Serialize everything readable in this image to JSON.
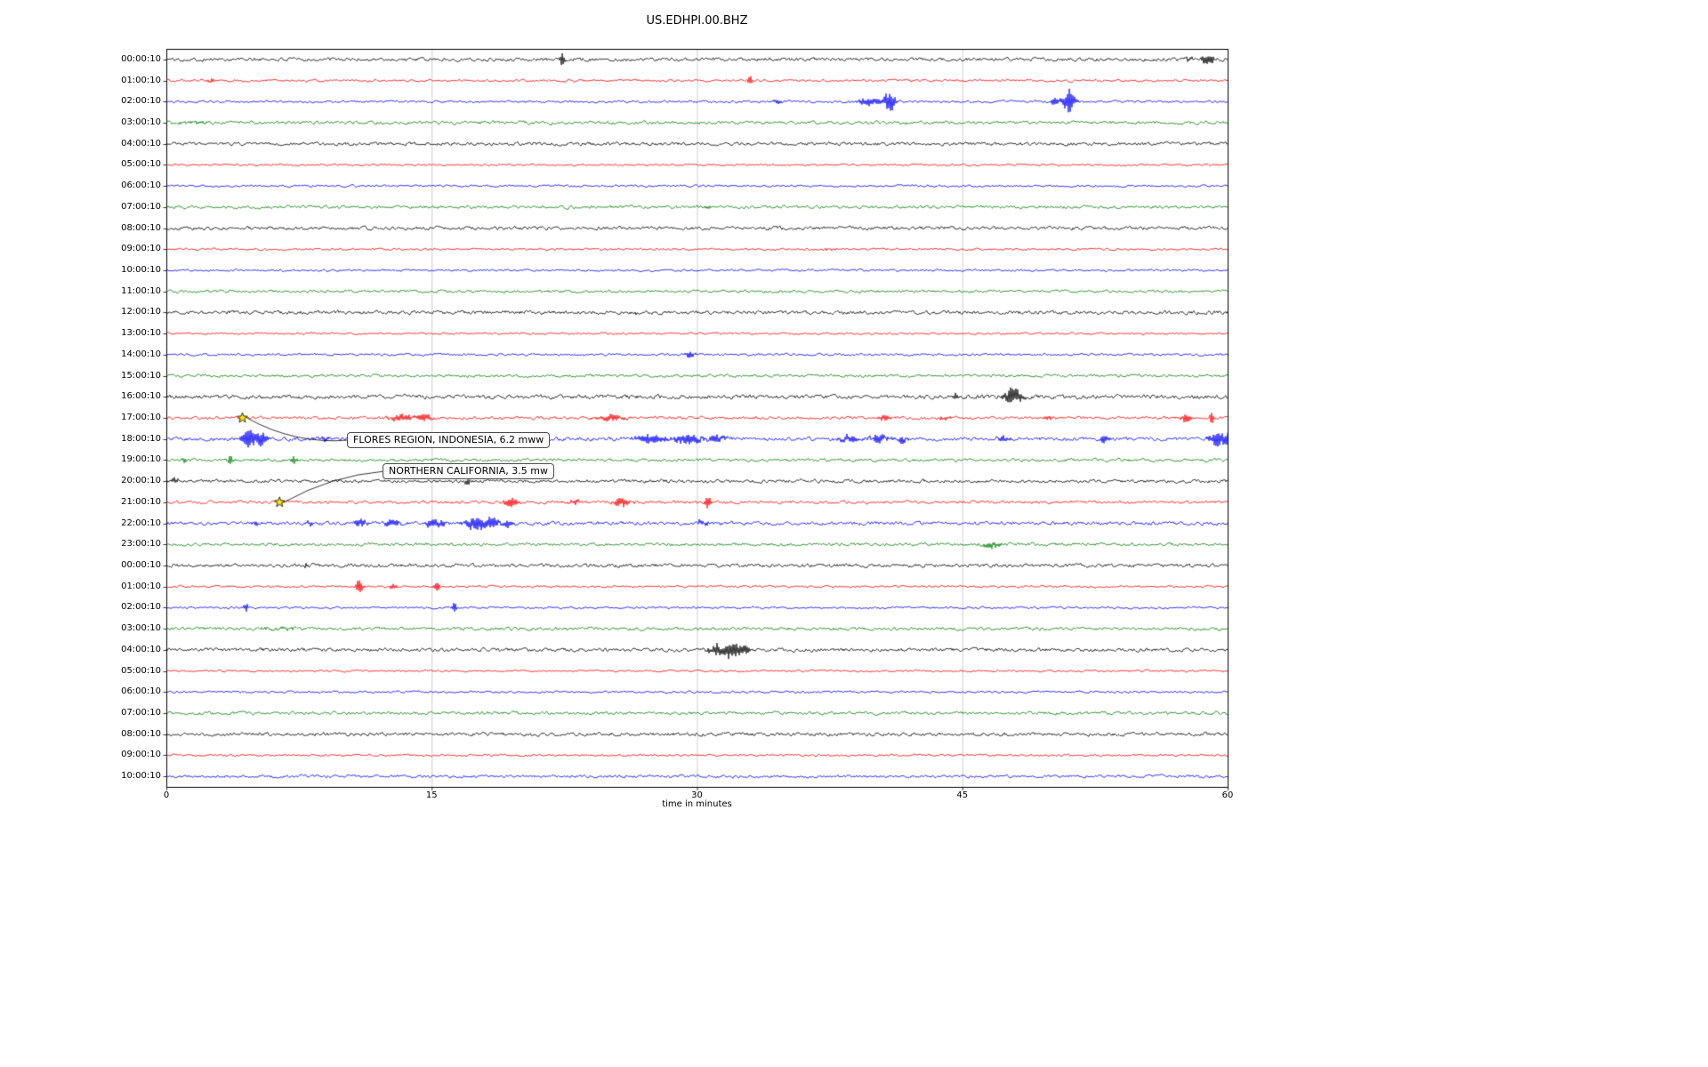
{
  "title": "US.EDHPI.00.BHZ",
  "xlabel": "time in minutes",
  "chart_data": {
    "type": "line",
    "subtype": "seismogram-dayplot",
    "title": "US.EDHPI.00.BHZ",
    "xlabel": "time in minutes",
    "xlim": [
      0,
      60
    ],
    "x_ticks": [
      0,
      15,
      30,
      45,
      60
    ],
    "x_gridlines": [
      15,
      30,
      45
    ],
    "grid_color": "#c8c8c8",
    "trace_color_cycle": [
      "#000000",
      "#ff0000",
      "#0000ff",
      "#008000"
    ],
    "event_marker_color": "#ffea00",
    "rows": [
      {
        "label": "00:00:10",
        "color": "#000000",
        "amp": 1.8,
        "bursts": [
          [
            22.4,
            0.12,
            9
          ],
          [
            57.8,
            0.2,
            3
          ],
          [
            58.9,
            0.35,
            6
          ]
        ]
      },
      {
        "label": "01:00:10",
        "color": "#ff0000",
        "amp": 1.2,
        "bursts": [
          [
            2.5,
            0.3,
            2
          ],
          [
            33.0,
            0.12,
            8
          ]
        ]
      },
      {
        "label": "02:00:10",
        "color": "#0000ff",
        "amp": 1.2,
        "bursts": [
          [
            34.6,
            0.25,
            3
          ],
          [
            39.7,
            0.7,
            5
          ],
          [
            40.9,
            0.3,
            13
          ],
          [
            50.2,
            0.2,
            5
          ],
          [
            51.0,
            0.35,
            15
          ]
        ]
      },
      {
        "label": "03:00:10",
        "color": "#008000",
        "amp": 1.6,
        "bursts": [
          [
            1.5,
            1.2,
            1.2
          ]
        ]
      },
      {
        "label": "04:00:10",
        "color": "#000000",
        "amp": 1.7,
        "bursts": []
      },
      {
        "label": "05:00:10",
        "color": "#ff0000",
        "amp": 1.0,
        "bursts": []
      },
      {
        "label": "06:00:10",
        "color": "#0000ff",
        "amp": 1.1,
        "bursts": []
      },
      {
        "label": "07:00:10",
        "color": "#008000",
        "amp": 1.5,
        "bursts": [
          [
            30.6,
            0.3,
            1.5
          ]
        ]
      },
      {
        "label": "08:00:10",
        "color": "#000000",
        "amp": 1.7,
        "bursts": []
      },
      {
        "label": "09:00:10",
        "color": "#ff0000",
        "amp": 1.1,
        "bursts": [
          [
            37.5,
            0.4,
            1.5
          ]
        ]
      },
      {
        "label": "10:00:10",
        "color": "#0000ff",
        "amp": 1.1,
        "bursts": []
      },
      {
        "label": "11:00:10",
        "color": "#008000",
        "amp": 1.4,
        "bursts": []
      },
      {
        "label": "12:00:10",
        "color": "#000000",
        "amp": 1.8,
        "bursts": [
          [
            26.5,
            0.1,
            2.5
          ]
        ]
      },
      {
        "label": "13:00:10",
        "color": "#ff0000",
        "amp": 1.0,
        "bursts": []
      },
      {
        "label": "14:00:10",
        "color": "#0000ff",
        "amp": 1.2,
        "bursts": [
          [
            29.6,
            0.3,
            3.5
          ]
        ]
      },
      {
        "label": "15:00:10",
        "color": "#008000",
        "amp": 1.4,
        "bursts": []
      },
      {
        "label": "16:00:10",
        "color": "#000000",
        "amp": 2.0,
        "bursts": [
          [
            44.6,
            0.2,
            3
          ],
          [
            47.9,
            0.45,
            11
          ]
        ]
      },
      {
        "label": "17:00:10",
        "color": "#ff0000",
        "amp": 1.5,
        "bursts": [
          [
            13.3,
            0.7,
            4
          ],
          [
            14.6,
            0.35,
            5
          ],
          [
            25.1,
            0.7,
            4
          ],
          [
            40.6,
            0.3,
            4
          ],
          [
            44.0,
            0.3,
            2.5
          ],
          [
            49.9,
            0.25,
            3
          ],
          [
            57.7,
            0.3,
            5
          ],
          [
            59.1,
            0.12,
            8
          ]
        ]
      },
      {
        "label": "18:00:10",
        "color": "#0000ff",
        "amp": 1.8,
        "bursts": [
          [
            4.7,
            0.45,
            10
          ],
          [
            5.4,
            0.3,
            8
          ],
          [
            9.0,
            0.3,
            3
          ],
          [
            16.5,
            0.25,
            3
          ],
          [
            27.4,
            0.8,
            5
          ],
          [
            29.5,
            0.8,
            6
          ],
          [
            31.2,
            0.5,
            4
          ],
          [
            38.6,
            0.6,
            5
          ],
          [
            40.3,
            0.5,
            5
          ],
          [
            41.6,
            0.3,
            4
          ],
          [
            47.3,
            0.3,
            4
          ],
          [
            53.0,
            0.3,
            4
          ],
          [
            59.4,
            0.4,
            9
          ],
          [
            60.0,
            0.3,
            7
          ]
        ]
      },
      {
        "label": "19:00:10",
        "color": "#008000",
        "amp": 1.5,
        "bursts": [
          [
            1.0,
            0.1,
            3
          ],
          [
            3.6,
            0.15,
            5
          ],
          [
            7.2,
            0.15,
            6
          ]
        ]
      },
      {
        "label": "20:00:10",
        "color": "#000000",
        "amp": 1.7,
        "bursts": [
          [
            0.5,
            0.15,
            5
          ],
          [
            17.0,
            0.12,
            7
          ]
        ]
      },
      {
        "label": "21:00:10",
        "color": "#ff0000",
        "amp": 1.5,
        "bursts": [
          [
            19.5,
            0.4,
            5
          ],
          [
            23.1,
            0.3,
            3
          ],
          [
            25.7,
            0.5,
            5
          ],
          [
            30.6,
            0.15,
            9
          ]
        ]
      },
      {
        "label": "22:00:10",
        "color": "#0000ff",
        "amp": 1.8,
        "bursts": [
          [
            5.0,
            0.2,
            3
          ],
          [
            8.1,
            0.2,
            3
          ],
          [
            11.0,
            0.3,
            5
          ],
          [
            12.8,
            0.4,
            5
          ],
          [
            15.2,
            0.5,
            6
          ],
          [
            17.5,
            0.6,
            7
          ],
          [
            18.4,
            0.4,
            7
          ],
          [
            19.3,
            0.3,
            5
          ],
          [
            30.3,
            0.3,
            4
          ]
        ]
      },
      {
        "label": "23:00:10",
        "color": "#008000",
        "amp": 1.5,
        "bursts": [
          [
            46.7,
            0.5,
            4
          ]
        ]
      },
      {
        "label": "00:00:10",
        "color": "#000000",
        "amp": 1.8,
        "bursts": [
          [
            7.9,
            0.1,
            2.5
          ]
        ]
      },
      {
        "label": "01:00:10",
        "color": "#ff0000",
        "amp": 1.1,
        "bursts": [
          [
            10.9,
            0.2,
            7
          ],
          [
            12.8,
            0.2,
            6
          ],
          [
            15.3,
            0.15,
            6
          ]
        ]
      },
      {
        "label": "02:00:10",
        "color": "#0000ff",
        "amp": 1.1,
        "bursts": [
          [
            4.5,
            0.12,
            6
          ],
          [
            16.3,
            0.15,
            6
          ]
        ]
      },
      {
        "label": "03:00:10",
        "color": "#008000",
        "amp": 1.6,
        "bursts": [
          [
            6.5,
            1.0,
            1.2
          ]
        ]
      },
      {
        "label": "04:00:10",
        "color": "#000000",
        "amp": 1.8,
        "bursts": [
          [
            31.0,
            0.4,
            6
          ],
          [
            31.9,
            0.5,
            10
          ],
          [
            32.7,
            0.3,
            6
          ]
        ]
      },
      {
        "label": "05:00:10",
        "color": "#ff0000",
        "amp": 1.0,
        "bursts": []
      },
      {
        "label": "06:00:10",
        "color": "#0000ff",
        "amp": 1.1,
        "bursts": []
      },
      {
        "label": "07:00:10",
        "color": "#008000",
        "amp": 1.5,
        "bursts": []
      },
      {
        "label": "08:00:10",
        "color": "#000000",
        "amp": 1.7,
        "bursts": []
      },
      {
        "label": "09:00:10",
        "color": "#ff0000",
        "amp": 1.1,
        "bursts": []
      },
      {
        "label": "10:00:10",
        "color": "#0000ff",
        "amp": 1.4,
        "bursts": []
      }
    ],
    "events": [
      {
        "label": "FLORES REGION, INDONESIA, 6.2 mww",
        "row": 17,
        "minute": 4.3,
        "box_x": 390,
        "box_y": 486
      },
      {
        "label": "NORTHERN CALIFORNIA, 3.5 mw",
        "row": 21,
        "minute": 6.4,
        "box_x": 430,
        "box_y": 521
      }
    ]
  }
}
